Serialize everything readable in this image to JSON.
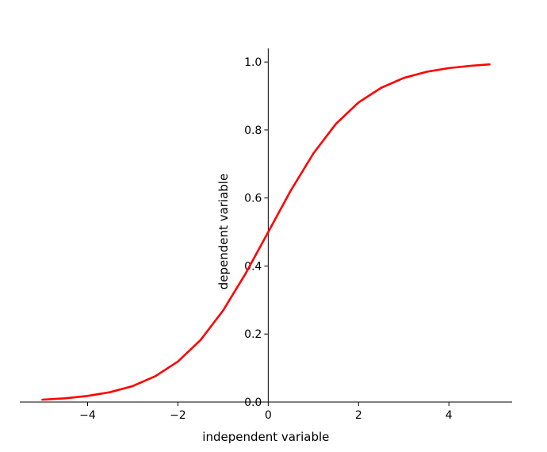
{
  "chart_data": {
    "type": "line",
    "title": "",
    "xlabel": "independent variable",
    "ylabel": "dependent variable",
    "xlim": [
      -5.5,
      5.4
    ],
    "ylim": [
      0.0,
      1.04
    ],
    "xticks": [
      -4,
      -2,
      0,
      2,
      4
    ],
    "xtick_labels": [
      "−4",
      "−2",
      "0",
      "2",
      "4"
    ],
    "yticks": [
      0.0,
      0.2,
      0.4,
      0.6,
      0.8,
      1.0
    ],
    "ytick_labels": [
      "0.0",
      "0.2",
      "0.4",
      "0.6",
      "0.8",
      "1.0"
    ],
    "spines": "centered-at-zero",
    "grid": false,
    "series": [
      {
        "color": "#ff0000",
        "x": [
          -5.0,
          -4.5,
          -4.0,
          -3.5,
          -3.0,
          -2.5,
          -2.0,
          -1.5,
          -1.0,
          -0.5,
          0.0,
          0.5,
          1.0,
          1.5,
          2.0,
          2.5,
          3.0,
          3.5,
          4.0,
          4.5,
          4.9
        ],
        "y": [
          0.007,
          0.011,
          0.018,
          0.029,
          0.047,
          0.076,
          0.119,
          0.182,
          0.269,
          0.378,
          0.5,
          0.622,
          0.731,
          0.818,
          0.881,
          0.924,
          0.953,
          0.971,
          0.982,
          0.989,
          0.993
        ]
      }
    ]
  }
}
